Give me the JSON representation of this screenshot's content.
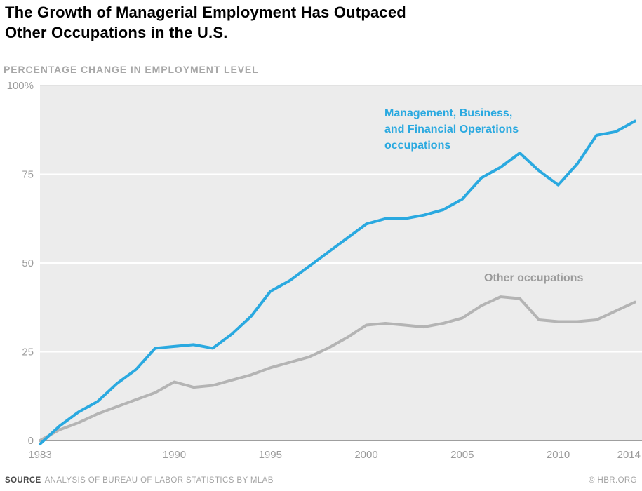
{
  "header": {
    "title": "The Growth of Managerial Employment Has Outpaced\nOther Occupations in the U.S.",
    "subtitle": "PERCENTAGE CHANGE IN EMPLOYMENT LEVEL"
  },
  "footer": {
    "source_label": "SOURCE",
    "source_text": "ANALYSIS OF BUREAU OF LABOR STATISTICS BY MLAB",
    "credit": "© HBR.ORG"
  },
  "chart_data": {
    "type": "line",
    "title": "The Growth of Managerial Employment Has Outpaced Other Occupations in the U.S.",
    "ylabel": "PERCENTAGE CHANGE IN EMPLOYMENT LEVEL",
    "xlabel": "",
    "ylim": [
      0,
      100
    ],
    "grid": true,
    "legend_position": "inline-annotations",
    "x": [
      1983,
      1984,
      1985,
      1986,
      1987,
      1988,
      1989,
      1990,
      1991,
      1992,
      1993,
      1994,
      1995,
      1996,
      1997,
      1998,
      1999,
      2000,
      2001,
      2002,
      2003,
      2004,
      2005,
      2006,
      2007,
      2008,
      2009,
      2010,
      2011,
      2012,
      2013,
      2014
    ],
    "x_ticks": [
      {
        "value": 1983,
        "label": "1983"
      },
      {
        "value": 1990,
        "label": "1990"
      },
      {
        "value": 1995,
        "label": "1995"
      },
      {
        "value": 2000,
        "label": "2000"
      },
      {
        "value": 2005,
        "label": "2005"
      },
      {
        "value": 2010,
        "label": "2010"
      },
      {
        "value": 2014,
        "label": "2014"
      }
    ],
    "y_ticks": [
      {
        "value": 0,
        "label": "0"
      },
      {
        "value": 25,
        "label": "25"
      },
      {
        "value": 50,
        "label": "50"
      },
      {
        "value": 75,
        "label": "75"
      },
      {
        "value": 100,
        "label": "100%"
      }
    ],
    "series": [
      {
        "key": "management",
        "name": "Management, Business, and Financial Operations occupations",
        "label": "Management, Business,\nand Financial Operations\noccupations",
        "color": "#2aa9e0",
        "label_color": "#2aa9e0",
        "values": [
          -1,
          4,
          8,
          11,
          16,
          20,
          26,
          26.5,
          27,
          26,
          30,
          35,
          42,
          45,
          49,
          53,
          57,
          61,
          62.5,
          62.5,
          63.5,
          65,
          68,
          74,
          77,
          81,
          76,
          72,
          78,
          86,
          87,
          90
        ]
      },
      {
        "key": "other",
        "name": "Other occupations",
        "label": "Other occupations",
        "color": "#b4b4b4",
        "label_color": "#9b9b9b",
        "values": [
          0,
          3,
          5,
          7.5,
          9.5,
          11.5,
          13.5,
          16.5,
          15,
          15.5,
          17,
          18.5,
          20.5,
          22,
          23.5,
          26,
          29,
          32.5,
          33,
          32.5,
          32,
          33,
          34.5,
          38,
          40.5,
          40,
          34,
          33.5,
          33.5,
          34,
          36.5,
          39
        ]
      }
    ],
    "colors": {
      "panel_bg": "#ececec",
      "gridline": "#ffffff",
      "top_line": "#d9d9d9",
      "axis": "#9f9f9f",
      "tick_label": "#9b9b9b"
    }
  }
}
